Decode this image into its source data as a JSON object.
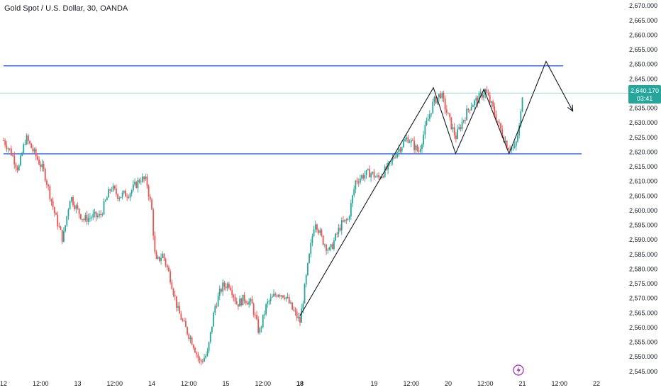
{
  "header": {
    "title": "Gold Spot / U.S. Dollar, 30, OANDA"
  },
  "price_label": {
    "price": "2,640.170",
    "countdown": "03:41"
  },
  "colors": {
    "up": "#26a69a",
    "down": "#ef5350",
    "level_line": "#2962ff",
    "pattern_line": "#131722",
    "last_price_line": "#26a69a",
    "background": "#ffffff",
    "bolt": "#9c27b0"
  },
  "icons": {
    "event": "lightning-bolt-icon"
  },
  "chart_data": {
    "type": "candlestick",
    "title": "Gold Spot / U.S. Dollar, 30, OANDA",
    "ylim": [
      2543,
      2672
    ],
    "xlim": [
      0,
      8.42
    ],
    "y_ticks": [
      "2,545.000",
      "2,550.000",
      "2,555.000",
      "2,560.000",
      "2,565.000",
      "2,570.000",
      "2,575.000",
      "2,580.000",
      "2,585.000",
      "2,590.000",
      "2,595.000",
      "2,600.000",
      "2,605.000",
      "2,610.000",
      "2,615.000",
      "2,620.000",
      "2,625.000",
      "2,630.000",
      "2,635.000",
      "2,640.000",
      "2,645.000",
      "2,650.000",
      "2,655.000",
      "2,660.000",
      "2,665.000",
      "2,670.000"
    ],
    "x_ticks": [
      {
        "label": "12",
        "t": 0.0
      },
      {
        "label": "12:00",
        "t": 0.5
      },
      {
        "label": "13",
        "t": 1.0
      },
      {
        "label": "12:00",
        "t": 1.5
      },
      {
        "label": "14",
        "t": 2.0
      },
      {
        "label": "12:00",
        "t": 2.5
      },
      {
        "label": "15",
        "t": 3.0
      },
      {
        "label": "12:00",
        "t": 3.5
      },
      {
        "label": "18",
        "t": 4.0,
        "bold": true
      },
      {
        "label": "19",
        "t": 5.0
      },
      {
        "label": "12:00",
        "t": 5.5
      },
      {
        "label": "20",
        "t": 6.0
      },
      {
        "label": "12:00",
        "t": 6.5
      },
      {
        "label": "21",
        "t": 7.0
      },
      {
        "label": "12:00",
        "t": 7.5
      },
      {
        "label": "22",
        "t": 8.0
      }
    ],
    "anchors": [
      [
        0.0,
        2624
      ],
      [
        0.1,
        2620
      ],
      [
        0.2,
        2614
      ],
      [
        0.3,
        2625
      ],
      [
        0.45,
        2618
      ],
      [
        0.55,
        2613
      ],
      [
        0.7,
        2598
      ],
      [
        0.8,
        2590
      ],
      [
        0.9,
        2605
      ],
      [
        1.0,
        2600
      ],
      [
        1.08,
        2597
      ],
      [
        1.2,
        2598
      ],
      [
        1.3,
        2598
      ],
      [
        1.45,
        2608
      ],
      [
        1.55,
        2605
      ],
      [
        1.7,
        2606
      ],
      [
        1.85,
        2611
      ],
      [
        1.93,
        2610
      ],
      [
        2.0,
        2600
      ],
      [
        2.05,
        2582
      ],
      [
        2.15,
        2585
      ],
      [
        2.25,
        2577
      ],
      [
        2.35,
        2566
      ],
      [
        2.45,
        2560
      ],
      [
        2.55,
        2555
      ],
      [
        2.65,
        2548
      ],
      [
        2.75,
        2551
      ],
      [
        2.85,
        2567
      ],
      [
        2.95,
        2574
      ],
      [
        3.05,
        2575
      ],
      [
        3.15,
        2568
      ],
      [
        3.25,
        2570
      ],
      [
        3.35,
        2568
      ],
      [
        3.45,
        2558
      ],
      [
        3.55,
        2568
      ],
      [
        3.7,
        2572
      ],
      [
        3.8,
        2571
      ],
      [
        3.9,
        2566
      ],
      [
        4.0,
        2562
      ],
      [
        4.1,
        2580
      ],
      [
        4.2,
        2597
      ],
      [
        4.3,
        2590
      ],
      [
        4.4,
        2586
      ],
      [
        4.55,
        2595
      ],
      [
        4.65,
        2597
      ],
      [
        4.75,
        2610
      ],
      [
        4.85,
        2612
      ],
      [
        4.95,
        2613
      ],
      [
        5.05,
        2611
      ],
      [
        5.2,
        2615
      ],
      [
        5.3,
        2620
      ],
      [
        5.45,
        2625
      ],
      [
        5.6,
        2620
      ],
      [
        5.7,
        2629
      ],
      [
        5.8,
        2637
      ],
      [
        5.9,
        2640
      ],
      [
        6.0,
        2632
      ],
      [
        6.1,
        2625
      ],
      [
        6.2,
        2631
      ],
      [
        6.3,
        2636
      ],
      [
        6.4,
        2638
      ],
      [
        6.5,
        2641
      ],
      [
        6.6,
        2635
      ],
      [
        6.7,
        2628
      ],
      [
        6.8,
        2622
      ],
      [
        6.9,
        2621
      ],
      [
        6.97,
        2630
      ],
      [
        7.0,
        2640
      ]
    ],
    "levels": [
      {
        "price": 2649.5,
        "t_from": 0.0,
        "t_to": 7.55
      },
      {
        "price": 2619.4,
        "t_from": 0.0,
        "t_to": 7.8
      }
    ],
    "last_price": 2640.17,
    "pattern_path": [
      [
        4.0,
        2564
      ],
      [
        5.8,
        2642
      ],
      [
        6.1,
        2619.5
      ],
      [
        6.48,
        2641.5
      ],
      [
        6.82,
        2619.5
      ],
      [
        7.32,
        2651
      ],
      [
        7.68,
        2634
      ]
    ]
  }
}
